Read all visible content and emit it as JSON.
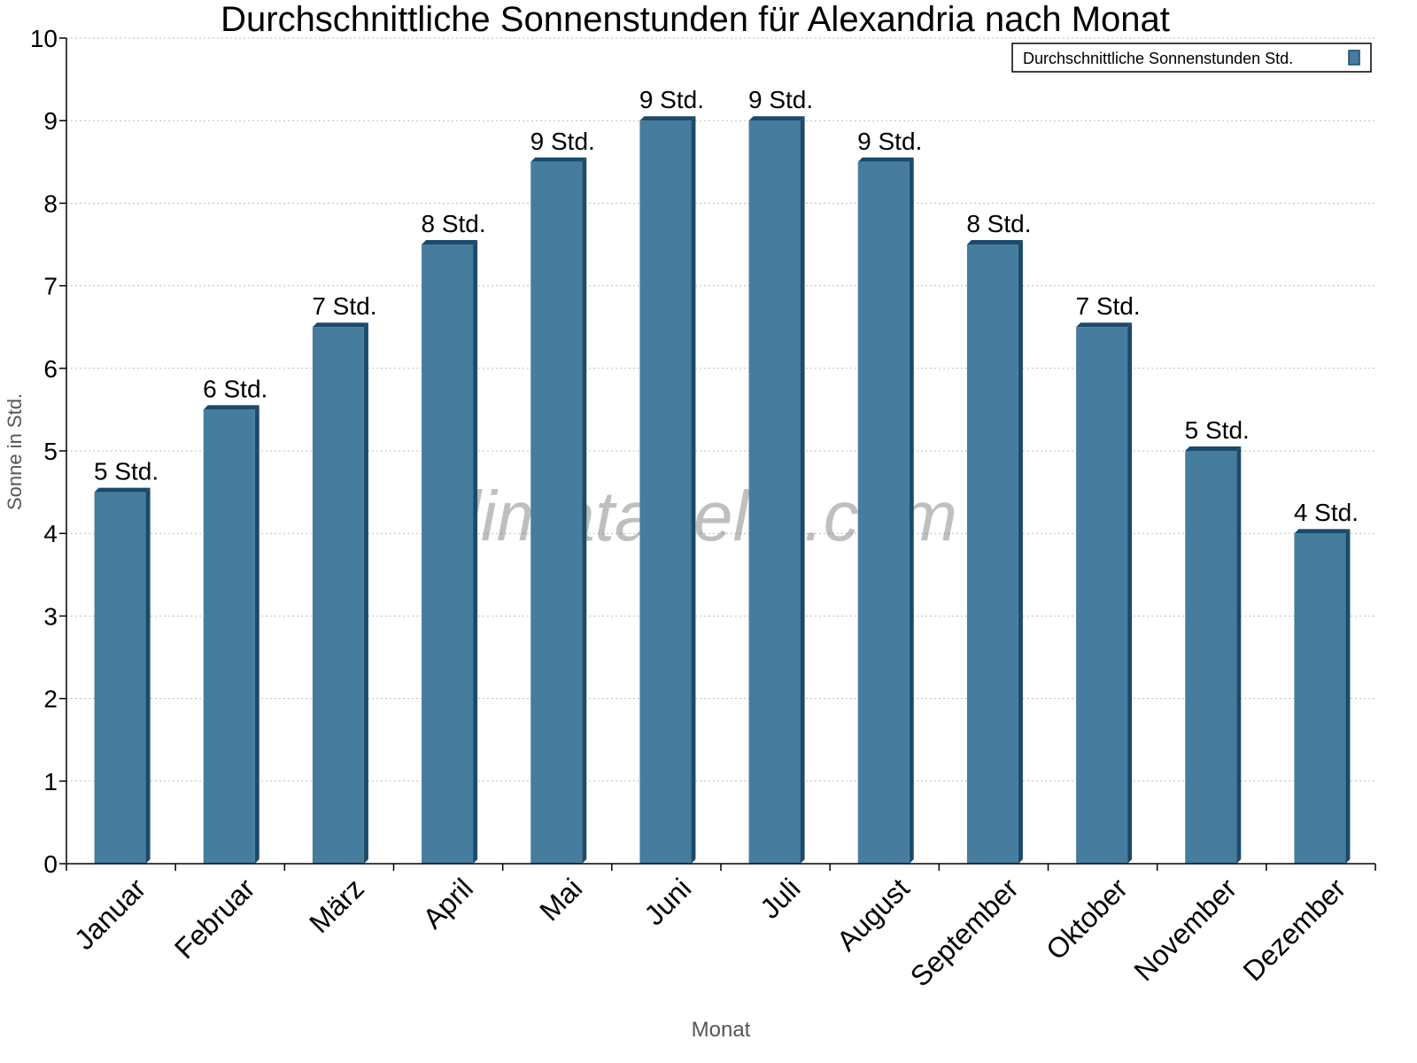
{
  "chart_data": {
    "type": "bar",
    "title": "Durchschnittliche Sonnenstunden für Alexandria nach Monat",
    "xlabel": "Monat",
    "ylabel": "Sonne in Std.",
    "ylim": [
      0,
      10
    ],
    "yticks": [
      "0",
      "1",
      "2",
      "3",
      "4",
      "5",
      "6",
      "7",
      "8",
      "9",
      "10"
    ],
    "grid": true,
    "legend": {
      "position": "top-right",
      "entries": [
        "Durchschnittliche Sonnenstunden Std."
      ]
    },
    "watermark": "klimatabelle.com",
    "categories": [
      "Januar",
      "Februar",
      "März",
      "April",
      "Mai",
      "Juni",
      "Juli",
      "August",
      "September",
      "Oktober",
      "November",
      "Dezember"
    ],
    "series": [
      {
        "name": "Durchschnittliche Sonnenstunden Std.",
        "values": [
          4.5,
          5.5,
          6.5,
          7.5,
          8.5,
          9,
          9,
          8.5,
          7.5,
          6.5,
          5,
          4
        ],
        "data_labels": [
          "5 Std.",
          "6 Std.",
          "7 Std.",
          "8 Std.",
          "9 Std.",
          "9 Std.",
          "9 Std.",
          "9 Std.",
          "8 Std.",
          "7 Std.",
          "5 Std.",
          "4 Std."
        ]
      }
    ],
    "colors": {
      "bar_face": "#467c9e",
      "bar_side": "#1b4a6b"
    }
  }
}
